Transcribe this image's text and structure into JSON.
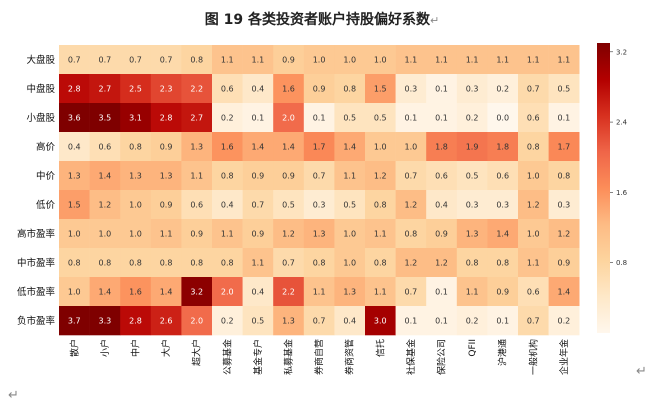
{
  "doc": {
    "paragraph_mark": "↵"
  },
  "chart_data": {
    "type": "heatmap",
    "title": "图 19  各类投资者账户持股偏好系数",
    "rows": [
      "大盘股",
      "中盘股",
      "小盘股",
      "高价",
      "中价",
      "低价",
      "高市盈率",
      "中市盈率",
      "低市盈率",
      "负市盈率"
    ],
    "columns": [
      "散户",
      "小户",
      "中户",
      "大户",
      "超大户",
      "公募基金",
      "基金专户",
      "私募基金",
      "券商自营",
      "券商资管",
      "信托",
      "社保基金",
      "保险公司",
      "QFII",
      "沪港通",
      "一般机构",
      "企业年金"
    ],
    "values": [
      [
        0.7,
        0.7,
        0.7,
        0.7,
        0.8,
        1.1,
        1.1,
        0.9,
        1.0,
        1.0,
        1.0,
        1.1,
        1.1,
        1.1,
        1.1,
        1.1,
        1.1
      ],
      [
        2.8,
        2.7,
        2.5,
        2.3,
        2.2,
        0.6,
        0.4,
        1.6,
        0.9,
        0.8,
        1.5,
        0.3,
        0.1,
        0.3,
        0.2,
        0.7,
        0.5
      ],
      [
        3.6,
        3.5,
        3.1,
        2.8,
        2.7,
        0.2,
        0.1,
        2.0,
        0.1,
        0.5,
        0.5,
        0.1,
        0.1,
        0.2,
        0.0,
        0.6,
        0.1
      ],
      [
        0.4,
        0.6,
        0.8,
        0.9,
        1.3,
        1.6,
        1.4,
        1.4,
        1.7,
        1.4,
        1.0,
        1.0,
        1.8,
        1.9,
        1.8,
        0.8,
        1.7
      ],
      [
        1.3,
        1.4,
        1.3,
        1.3,
        1.1,
        0.8,
        0.9,
        0.9,
        0.7,
        1.1,
        1.2,
        0.7,
        0.6,
        0.5,
        0.6,
        1.0,
        0.8
      ],
      [
        1.5,
        1.2,
        1.0,
        0.9,
        0.6,
        0.4,
        0.7,
        0.5,
        0.3,
        0.5,
        0.8,
        1.2,
        0.4,
        0.3,
        0.3,
        1.2,
        0.3
      ],
      [
        1.0,
        1.0,
        1.0,
        1.1,
        0.9,
        1.1,
        0.9,
        1.2,
        1.3,
        1.0,
        1.1,
        0.8,
        0.9,
        1.3,
        1.4,
        1.0,
        1.2
      ],
      [
        0.8,
        0.8,
        0.8,
        0.8,
        0.8,
        0.8,
        1.1,
        0.7,
        0.8,
        1.0,
        0.8,
        1.2,
        1.2,
        0.8,
        0.8,
        1.1,
        0.9
      ],
      [
        1.0,
        1.4,
        1.6,
        1.4,
        3.2,
        2.0,
        0.4,
        2.2,
        1.1,
        1.3,
        1.1,
        0.7,
        0.1,
        1.1,
        0.9,
        0.6,
        1.4
      ],
      [
        3.7,
        3.3,
        2.8,
        2.6,
        2.0,
        0.2,
        0.5,
        1.3,
        0.7,
        0.4,
        3.0,
        0.1,
        0.1,
        0.2,
        0.1,
        0.7,
        0.2
      ]
    ],
    "colorbar": {
      "colormap": "OrRd",
      "vmin": 0.0,
      "vmax": 3.3,
      "ticks": [
        0.8,
        1.6,
        2.4,
        3.2
      ]
    },
    "colors": {
      "low": "#fff7ec",
      "mid": "#fdbb84",
      "high": "#7f0000"
    }
  }
}
